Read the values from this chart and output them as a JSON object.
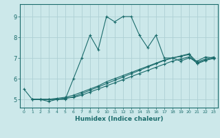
{
  "xlabel": "Humidex (Indice chaleur)",
  "ylabel": "",
  "background_color": "#cce8ea",
  "grid_color": "#aed0d4",
  "line_color": "#1a6b6b",
  "xlim": [
    -0.5,
    23.5
  ],
  "ylim": [
    4.6,
    9.6
  ],
  "xticks": [
    0,
    1,
    2,
    3,
    4,
    5,
    6,
    7,
    8,
    9,
    10,
    11,
    12,
    13,
    14,
    15,
    16,
    17,
    18,
    19,
    20,
    21,
    22,
    23
  ],
  "yticks": [
    5,
    6,
    7,
    8,
    9
  ],
  "line1_x": [
    0,
    1,
    2,
    3,
    4,
    5,
    6,
    7,
    8,
    9,
    10,
    11,
    12,
    13,
    14,
    15,
    16,
    17,
    18,
    19,
    20,
    21,
    22,
    23
  ],
  "line1_y": [
    5.5,
    5.0,
    5.0,
    4.9,
    5.0,
    5.0,
    6.0,
    7.0,
    8.1,
    7.4,
    9.0,
    8.75,
    9.0,
    9.0,
    8.1,
    7.5,
    8.1,
    7.0,
    7.0,
    6.85,
    7.0,
    6.85,
    7.05,
    7.0
  ],
  "line2_x": [
    1,
    2,
    3,
    4,
    5,
    6,
    7,
    8,
    9,
    10,
    11,
    12,
    13,
    14,
    15,
    16,
    17,
    18,
    19,
    20,
    21,
    22,
    23
  ],
  "line2_y": [
    5.0,
    5.0,
    5.0,
    5.0,
    5.05,
    5.1,
    5.2,
    5.35,
    5.5,
    5.65,
    5.8,
    5.95,
    6.1,
    6.25,
    6.4,
    6.55,
    6.7,
    6.85,
    6.95,
    7.05,
    6.75,
    6.9,
    7.0
  ],
  "line3_x": [
    1,
    2,
    3,
    4,
    5,
    6,
    7,
    8,
    9,
    10,
    11,
    12,
    13,
    14,
    15,
    16,
    17,
    18,
    19,
    20,
    21,
    22,
    23
  ],
  "line3_y": [
    5.0,
    5.0,
    5.0,
    5.05,
    5.1,
    5.2,
    5.35,
    5.5,
    5.65,
    5.85,
    6.0,
    6.15,
    6.3,
    6.45,
    6.6,
    6.75,
    6.9,
    7.0,
    7.1,
    7.2,
    6.8,
    6.95,
    7.05
  ],
  "line4_x": [
    1,
    2,
    3,
    4,
    5,
    6,
    7,
    8,
    9,
    10,
    11,
    12,
    13,
    14,
    15,
    16,
    17,
    18,
    19,
    20,
    21,
    22,
    23
  ],
  "line4_y": [
    5.0,
    5.0,
    5.0,
    5.0,
    5.05,
    5.12,
    5.28,
    5.44,
    5.6,
    5.76,
    5.92,
    6.08,
    6.24,
    6.4,
    6.56,
    6.72,
    6.88,
    7.0,
    7.08,
    7.16,
    6.72,
    6.88,
    6.98
  ]
}
